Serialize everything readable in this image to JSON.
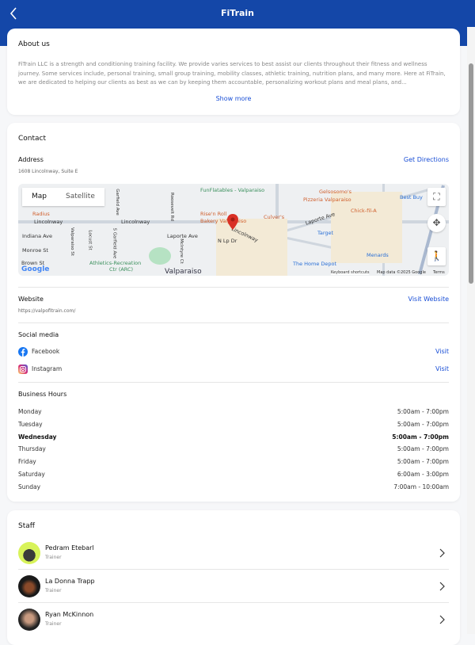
{
  "header": {
    "title": "FiTrain",
    "back_icon": "chevron-left-icon"
  },
  "colors": {
    "header": "#1447a8",
    "link": "#1a4fd6",
    "pin": "#d93025"
  },
  "about": {
    "title": "About us",
    "text": "FiTrain LLC is a strength and conditioning training facility. We provide varies services to best assist our clients throughout their fitness and wellness journey. Some services include, personal training, small group training, mobility classes, athletic training, nutrition plans, and many more. Here at FiTrain, we are dedicated to helping our clients as best as we can by keeping them accountable, personalizing workout plans and meal plans, and...",
    "show_more": "Show more"
  },
  "contact": {
    "title": "Contact",
    "address": {
      "label": "Address",
      "value": "1608 Lincolnway, Suite E",
      "action": "Get Directions"
    },
    "map": {
      "tabs": [
        "Map",
        "Satellite"
      ],
      "labels": [
        "FunFlatables - Valparaiso",
        "Gelsosomo's",
        "Pizzeria Valparaiso",
        "Best Buy",
        "Radius",
        "Lincolnway",
        "Lincolnway",
        "Rise'n Roll",
        "Bakery Valparaiso",
        "Culver's",
        "Chick-fil-A",
        "Laporte Ave",
        "Lincolnway",
        "Target",
        "Indiana Ave",
        "Laporte Ave",
        "N Lp Dr",
        "Monroe St",
        "Menards",
        "Brown St",
        "Athletics-Recreation",
        "Ctr (ARC)",
        "Valparaiso",
        "The Home Depot",
        "Roosevelt Rd",
        "Garfield Ave",
        "Valparaiso St",
        "Locust St",
        "S Garfield Ave",
        "McIntyre Ct"
      ],
      "logo": "Google",
      "footer": [
        "Keyboard shortcuts",
        "Map data ©2025 Google",
        "Terms"
      ]
    },
    "website": {
      "label": "Website",
      "value": "https://valpofitrain.com/",
      "action": "Visit Website"
    },
    "social": {
      "label": "Social media",
      "items": [
        {
          "name": "Facebook",
          "icon": "facebook-icon",
          "action": "Visit"
        },
        {
          "name": "Instagram",
          "icon": "instagram-icon",
          "action": "Visit"
        }
      ]
    },
    "hours": {
      "label": "Business Hours",
      "days": [
        {
          "day": "Monday",
          "time": "5:00am - 7:00pm"
        },
        {
          "day": "Tuesday",
          "time": "5:00am - 7:00pm"
        },
        {
          "day": "Wednesday",
          "time": "5:00am - 7:00pm",
          "today": true
        },
        {
          "day": "Thursday",
          "time": "5:00am - 7:00pm"
        },
        {
          "day": "Friday",
          "time": "5:00am - 7:00pm"
        },
        {
          "day": "Saturday",
          "time": "6:00am - 3:00pm"
        },
        {
          "day": "Sunday",
          "time": "7:00am - 10:00am"
        }
      ]
    }
  },
  "staff": {
    "title": "Staff",
    "members": [
      {
        "name": "Pedram Etebarl",
        "role": "Trainer"
      },
      {
        "name": "La Donna Trapp",
        "role": "Trainer"
      },
      {
        "name": "Ryan McKinnon",
        "role": "Trainer"
      }
    ]
  }
}
